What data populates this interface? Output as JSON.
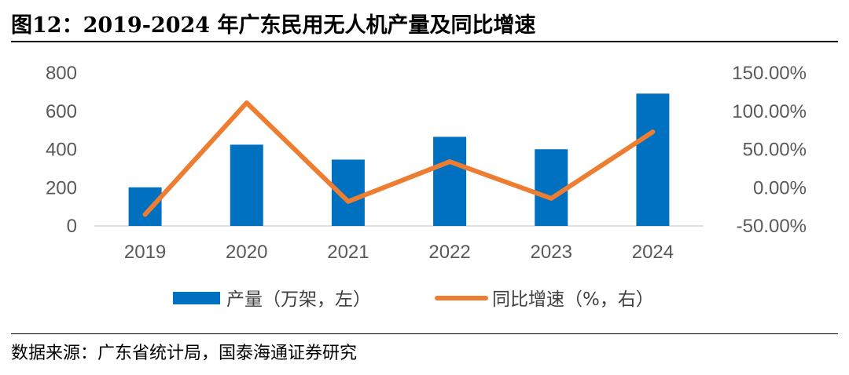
{
  "title": "图12：2019-2024 年广东民用无人机产量及同比增速",
  "source": "数据来源：广东省统计局，国泰海通证券研究",
  "colors": {
    "bar": "#0070C0",
    "line": "#ED7D31"
  },
  "chart_data": {
    "type": "bar+line",
    "categories": [
      "2019",
      "2020",
      "2021",
      "2022",
      "2023",
      "2024"
    ],
    "series": [
      {
        "name": "产量（万架，左）",
        "type": "bar",
        "axis": "left",
        "values": [
          202,
          425,
          347,
          466,
          401,
          692
        ]
      },
      {
        "name": "同比增速（%，右）",
        "type": "line",
        "axis": "right",
        "values": [
          -35.0,
          111.0,
          -18.0,
          34.0,
          -14.0,
          73.0
        ]
      }
    ],
    "y_left": {
      "min": 0,
      "max": 800,
      "ticks": [
        "0",
        "200",
        "400",
        "600",
        "800"
      ]
    },
    "y_right": {
      "min": -50,
      "max": 150,
      "ticks": [
        "-50.00%",
        "0.00%",
        "50.00%",
        "100.00%",
        "150.00%"
      ]
    },
    "legend": [
      "产量（万架，左）",
      "同比增速（%，右）"
    ],
    "grid": false
  }
}
